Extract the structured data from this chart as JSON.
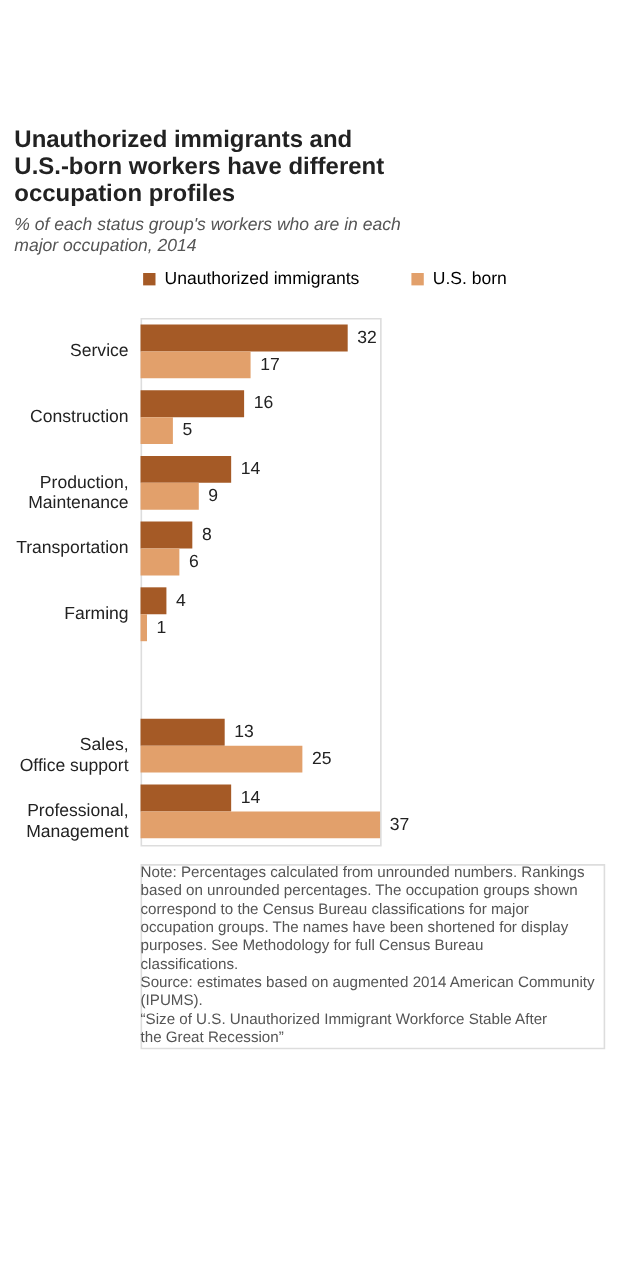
{
  "chart_data": {
    "type": "bar",
    "orientation": "horizontal",
    "title": "Unauthorized immigrants and U.S.-born workers have different occupation profiles",
    "subtitle": "% of each status group's workers who are in each major occupation, 2014",
    "categories": [
      "Service",
      "Construction",
      "Production,\nMaintenance",
      "Transportation",
      "Farming",
      null,
      "Sales,\nOffice support",
      "Professional,\nManagement"
    ],
    "series": [
      {
        "name": "Unauthorized immigrants",
        "color": "#a55a26",
        "values": [
          32,
          16,
          14,
          8,
          4,
          null,
          13,
          14
        ]
      },
      {
        "name": "U.S. born",
        "color": "#e2a06b",
        "values": [
          17,
          5,
          9,
          6,
          1,
          null,
          25,
          37
        ]
      }
    ],
    "data_labels": true,
    "legend": "top",
    "grid": false,
    "annotations": [
      "Note: Percentages calculated from unrounded numbers. Rankings based on unrounded percentages. The occupation groups shown correspond to the Census Bureau classifications for major occupation groups. The names have been shortened for display purposes. See Methodology for full Census Bureau classifications.",
      "Source: estimates based on augmented 2014 American Community (IPUMS).",
      "“Size of U.S. Unauthorized Immigrant Workforce Stable After the Great Recession”"
    ]
  }
}
